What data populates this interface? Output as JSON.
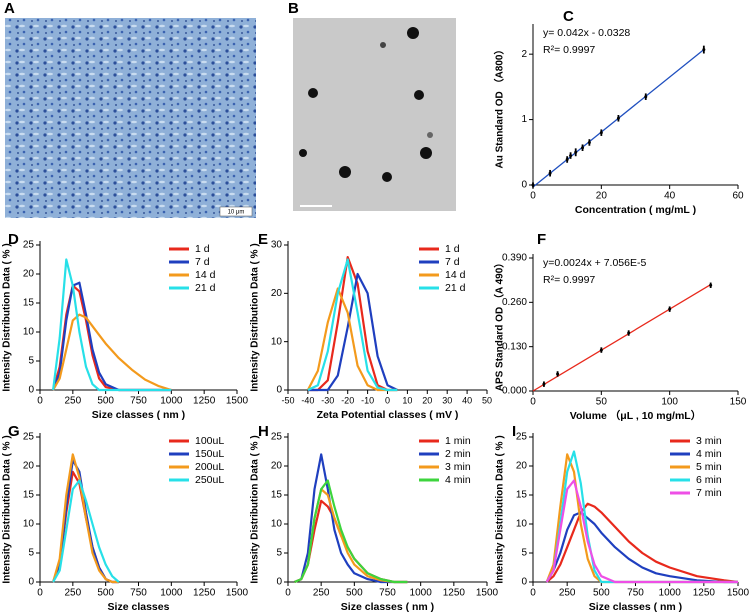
{
  "images": [
    {
      "label": "A",
      "scale_label": "10 μm"
    },
    {
      "label": "B"
    }
  ],
  "chart_data": [
    {
      "type": "scatter",
      "panel": "C",
      "x_label": "Concentration ( mg/mL )",
      "y_label": "Au Standard OD （A800）",
      "annotations": [
        "y= 0.042x - 0.0328",
        "R²= 0.9997"
      ],
      "x": [
        0,
        5,
        10,
        11,
        12.5,
        14.5,
        16.5,
        20,
        25,
        33,
        50
      ],
      "values": [
        0,
        0.18,
        0.39,
        0.45,
        0.5,
        0.57,
        0.65,
        0.8,
        1.02,
        1.35,
        2.07
      ],
      "errors": [
        0.04,
        0.05,
        0.05,
        0.05,
        0.06,
        0.05,
        0.05,
        0.05,
        0.05,
        0.05,
        0.06
      ],
      "color": "#000000",
      "fit": {
        "x": [
          0,
          50
        ],
        "values": [
          -0.03,
          2.07
        ],
        "color": "#1f4fbf"
      },
      "xlim": [
        0,
        60
      ],
      "xticks": [
        0,
        20,
        40,
        60
      ],
      "ylim": [
        0,
        2.4
      ],
      "yticks": [
        0,
        1,
        2
      ]
    },
    {
      "type": "line",
      "panel": "D",
      "x_label": "Size classes ( nm )",
      "y_label": "Intensity Distribution Data ( % )",
      "x": [
        100,
        150,
        200,
        250,
        300,
        350,
        400,
        450,
        500,
        600,
        700,
        800,
        900,
        1000
      ],
      "series": [
        {
          "name": "1  d",
          "color": "#e8291c",
          "values": [
            0,
            4,
            13,
            18,
            17,
            12,
            6,
            2,
            0.5,
            0,
            0,
            0,
            0,
            0
          ]
        },
        {
          "name": "7  d",
          "color": "#1f3fbf",
          "values": [
            0,
            3,
            12,
            18,
            18.5,
            13,
            7,
            3,
            1,
            0,
            0,
            0,
            0,
            0
          ]
        },
        {
          "name": "14  d",
          "color": "#f39a1c",
          "values": [
            0,
            2,
            7,
            12,
            13,
            12.5,
            11,
            9.5,
            8,
            5.5,
            3.5,
            1.8,
            0.7,
            0
          ]
        },
        {
          "name": "21  d",
          "color": "#27e0e8",
          "values": [
            0,
            9,
            22.5,
            18,
            10,
            4,
            1,
            0,
            0,
            0,
            0,
            0,
            0,
            0
          ]
        }
      ],
      "xlim": [
        0,
        1500
      ],
      "xticks": [
        0,
        250,
        500,
        750,
        1000,
        1250,
        1500
      ],
      "ylim": [
        0,
        25
      ],
      "yticks": [
        0,
        5,
        10,
        15,
        20,
        25
      ],
      "legend": "upper right"
    },
    {
      "type": "line",
      "panel": "E",
      "x_label": "Zeta Potential classes ( mV )",
      "y_label": "Intensity Distribution Data ( % )",
      "x": [
        -40,
        -35,
        -30,
        -25,
        -20,
        -15,
        -10,
        -5,
        0,
        5
      ],
      "series": [
        {
          "name": "1  d",
          "color": "#e8291c",
          "values": [
            0,
            0,
            2,
            14,
            27.5,
            22,
            8,
            1,
            0,
            0
          ]
        },
        {
          "name": "7  d",
          "color": "#1f3fbf",
          "values": [
            0,
            0,
            0,
            3,
            13,
            24,
            20,
            7,
            1,
            0
          ]
        },
        {
          "name": "14  d",
          "color": "#f39a1c",
          "values": [
            0,
            4,
            14,
            21,
            16,
            5,
            1,
            0,
            0,
            0
          ]
        },
        {
          "name": "21  d",
          "color": "#27e0e8",
          "values": [
            0,
            1,
            8,
            20,
            27,
            16,
            4,
            0.5,
            0,
            0
          ]
        }
      ],
      "xlim": [
        -50,
        50
      ],
      "xticks": [
        -50,
        -40,
        -30,
        -20,
        -10,
        0,
        10,
        20,
        30,
        40,
        50
      ],
      "ylim": [
        0,
        30
      ],
      "yticks": [
        0,
        10,
        20,
        30
      ],
      "legend": "upper right"
    },
    {
      "type": "scatter",
      "panel": "F",
      "x_label": "Volume （μL , 10 mg/mL）",
      "y_label": "APS Standard OD （A 490）",
      "annotations": [
        "y=0.0024x + 7.056E-5",
        "R²= 0.9997"
      ],
      "x": [
        8,
        18,
        50,
        70,
        100,
        130
      ],
      "values": [
        0.02,
        0.05,
        0.12,
        0.17,
        0.24,
        0.31
      ],
      "errors": [
        0.008,
        0.008,
        0.008,
        0.008,
        0.008,
        0.008
      ],
      "color": "#000000",
      "fit": {
        "x": [
          0,
          130
        ],
        "values": [
          0,
          0.312
        ],
        "color": "#e8291c"
      },
      "xlim": [
        0,
        150
      ],
      "xticks": [
        0,
        50,
        100,
        150
      ],
      "ylim": [
        0,
        0.39
      ],
      "yticks": [
        {
          "value": 0,
          "label": "0.000"
        },
        {
          "value": 0.13,
          "label": "0.130"
        },
        {
          "value": 0.26,
          "label": "0.260"
        },
        {
          "value": 0.39,
          "label": "0.390"
        }
      ]
    },
    {
      "type": "line",
      "panel": "G",
      "x_label": "Size classes",
      "y_label": "Intensity Distribution Data ( % )",
      "x": [
        100,
        150,
        200,
        250,
        300,
        350,
        400,
        450,
        500,
        550,
        600
      ],
      "series": [
        {
          "name": "100uL",
          "color": "#e8291c",
          "values": [
            0,
            3,
            12,
            19,
            17,
            11,
            6,
            2.5,
            0.5,
            0,
            0
          ]
        },
        {
          "name": "150uL",
          "color": "#1f3fbf",
          "values": [
            0,
            3,
            13,
            21,
            19,
            12,
            6,
            2.5,
            0.5,
            0,
            0
          ]
        },
        {
          "name": "200uL",
          "color": "#f39a1c",
          "values": [
            0,
            4,
            15,
            22,
            18,
            11,
            5,
            2,
            0.5,
            0,
            0
          ]
        },
        {
          "name": "250uL",
          "color": "#27e0e8",
          "values": [
            0,
            2,
            9,
            16,
            17.5,
            14,
            10,
            6,
            3,
            1,
            0
          ]
        }
      ],
      "xlim": [
        0,
        1500
      ],
      "xticks": [
        0,
        250,
        500,
        750,
        1000,
        1250,
        1500
      ],
      "ylim": [
        0,
        25
      ],
      "yticks": [
        0,
        5,
        10,
        15,
        20,
        25
      ],
      "legend": "upper right"
    },
    {
      "type": "line",
      "panel": "H",
      "x_label": "Size classes ( nm )",
      "y_label": "Intensity Distribution Data ( % )",
      "x": [
        50,
        100,
        150,
        200,
        250,
        300,
        350,
        400,
        450,
        500,
        600,
        700,
        800,
        900
      ],
      "series": [
        {
          "name": "1 min",
          "color": "#e8291c",
          "values": [
            0,
            0.5,
            3,
            9,
            14,
            13,
            11,
            8,
            6,
            4,
            1.5,
            0.5,
            0,
            0
          ]
        },
        {
          "name": "2 min",
          "color": "#1f3fbf",
          "values": [
            0,
            0.5,
            5,
            16,
            22,
            16,
            9,
            5,
            3,
            1.5,
            0.5,
            0,
            0,
            0
          ]
        },
        {
          "name": "3 min",
          "color": "#f39a1c",
          "values": [
            0,
            0.5,
            3,
            11,
            16,
            15,
            11,
            8,
            5,
            3,
            1,
            0.3,
            0,
            0
          ]
        },
        {
          "name": "4 min",
          "color": "#3dd43d",
          "values": [
            0,
            0.5,
            3,
            11,
            16,
            17.5,
            13,
            9,
            6,
            4,
            1.5,
            0.5,
            0,
            0
          ]
        }
      ],
      "xlim": [
        0,
        1500
      ],
      "xticks": [
        0,
        250,
        500,
        750,
        1000,
        1250,
        1500
      ],
      "ylim": [
        0,
        25
      ],
      "yticks": [
        0,
        5,
        10,
        15,
        20,
        25
      ],
      "legend": "upper right"
    },
    {
      "type": "line",
      "panel": "I",
      "x_label": "Size classes ( nm )",
      "y_label": "Intensity Distribution Data ( % )",
      "x": [
        100,
        150,
        200,
        250,
        300,
        350,
        400,
        450,
        500,
        600,
        700,
        800,
        900,
        1000,
        1200,
        1400,
        1500
      ],
      "series": [
        {
          "name": "3 min",
          "color": "#e8291c",
          "values": [
            0,
            1,
            3,
            6,
            9,
            12,
            13.5,
            13,
            12,
            9.5,
            7,
            5,
            3.5,
            2.5,
            1,
            0.3,
            0
          ]
        },
        {
          "name": "4 min",
          "color": "#1f3fbf",
          "values": [
            0,
            2,
            5,
            9,
            11.5,
            12,
            11,
            10,
            8.5,
            6,
            4,
            2.5,
            1.5,
            1,
            0.3,
            0,
            0
          ]
        },
        {
          "name": "5 min",
          "color": "#f39a1c",
          "values": [
            0,
            3,
            13,
            22,
            19,
            10,
            4,
            1,
            0,
            0,
            0,
            0,
            0,
            0,
            0,
            0,
            0
          ]
        },
        {
          "name": "6 min",
          "color": "#27e0e8",
          "values": [
            0,
            2,
            10,
            19,
            22.5,
            17,
            8,
            2,
            0,
            0,
            0,
            0,
            0,
            0,
            0,
            0,
            0
          ]
        },
        {
          "name": "7 min",
          "color": "#ee4fe6",
          "values": [
            0,
            2,
            9,
            16,
            17.5,
            13,
            7,
            3,
            1,
            0,
            0,
            0,
            0,
            0,
            0,
            0,
            0
          ]
        }
      ],
      "xlim": [
        0,
        1500
      ],
      "xticks": [
        0,
        250,
        500,
        750,
        1000,
        1250,
        1500
      ],
      "ylim": [
        0,
        25
      ],
      "yticks": [
        0,
        5,
        10,
        15,
        20,
        25
      ],
      "legend": "upper right"
    }
  ]
}
